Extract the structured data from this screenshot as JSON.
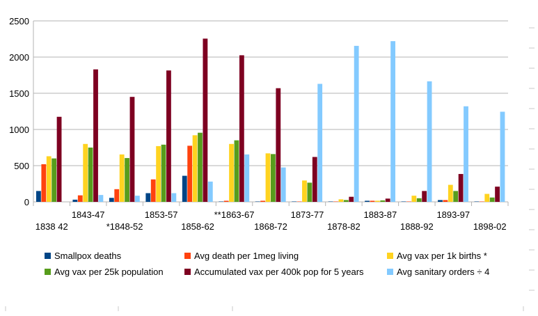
{
  "chart_data": {
    "type": "bar",
    "categories": [
      "1838 42",
      "1843-47",
      "*1848-52",
      "1853-57",
      "1858-62",
      "**1863-67",
      "1868-72",
      "1873-77",
      "1878-82",
      "1883-87",
      "1888-92",
      "1893-97",
      "1898-02"
    ],
    "ylim": [
      0,
      2500
    ],
    "yticks": [
      0,
      500,
      1000,
      1500,
      2000,
      2500
    ],
    "grid": true,
    "legend_position": "bottom",
    "series": [
      {
        "name": "Smallpox deaths",
        "color": "#004586",
        "values": [
          150,
          30,
          55,
          120,
          360,
          5,
          5,
          5,
          5,
          15,
          5,
          25,
          5
        ]
      },
      {
        "name": "Avg death per 1meg living",
        "color": "#ff420e",
        "values": [
          520,
          90,
          175,
          310,
          775,
          15,
          15,
          5,
          5,
          15,
          5,
          25,
          5
        ]
      },
      {
        "name": "Avg vax per 1k births *",
        "color": "#ffd320",
        "values": [
          630,
          800,
          655,
          770,
          920,
          800,
          670,
          295,
          35,
          15,
          85,
          235,
          110
        ]
      },
      {
        "name": "Avg vax per 25k population",
        "color": "#579d1c",
        "values": [
          600,
          750,
          605,
          790,
          955,
          850,
          660,
          265,
          25,
          20,
          50,
          150,
          60
        ]
      },
      {
        "name": "Accumulated vax per 400k pop for 5 years",
        "color": "#7e0021",
        "values": [
          1175,
          1830,
          1450,
          1815,
          2255,
          2025,
          1570,
          620,
          70,
          45,
          150,
          385,
          210
        ]
      },
      {
        "name": "Avg sanitary orders ÷ 4",
        "color": "#83caff",
        "values": [
          0,
          95,
          85,
          120,
          280,
          655,
          475,
          1630,
          2155,
          2220,
          1665,
          1320,
          1245
        ]
      }
    ]
  }
}
